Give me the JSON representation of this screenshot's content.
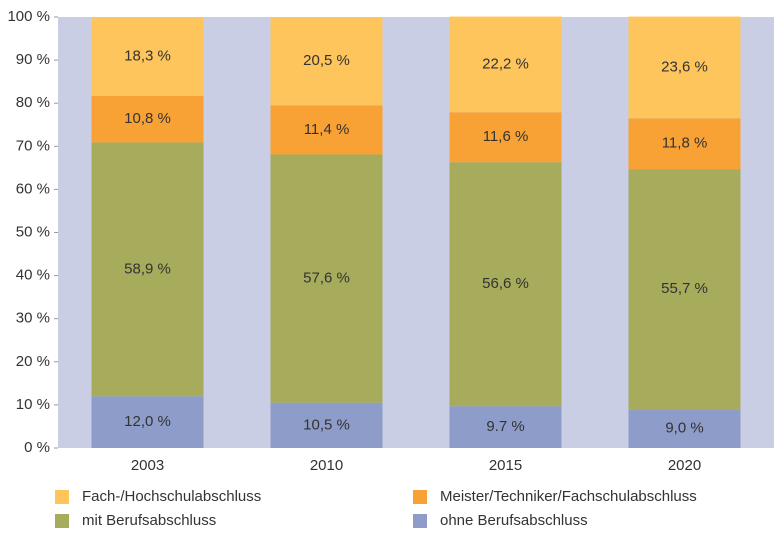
{
  "chart_data": {
    "type": "stacked_bar",
    "categories": [
      "2003",
      "2010",
      "2015",
      "2020"
    ],
    "series": [
      {
        "name": "ohne Berufsabschluss",
        "color": "#8e9cc9",
        "values": [
          12.0,
          10.5,
          9.7,
          9.0
        ],
        "value_labels": [
          "12,0 %",
          "10,5 %",
          "9.7 %",
          "9,0 %"
        ]
      },
      {
        "name": "mit Berufsabschluss",
        "color": "#a7ab5c",
        "values": [
          58.9,
          57.6,
          56.6,
          55.7
        ],
        "value_labels": [
          "58,9 %",
          "57,6 %",
          "56,6 %",
          "55,7 %"
        ]
      },
      {
        "name": "Meister/Techniker/Fachschulabschluss",
        "color": "#f8a134",
        "values": [
          10.8,
          11.4,
          11.6,
          11.8
        ],
        "value_labels": [
          "10,8 %",
          "11,4 %",
          "11,6 %",
          "11,8 %"
        ]
      },
      {
        "name": "Fach-/Hochschulabschluss",
        "color": "#fdc55c",
        "values": [
          18.3,
          20.5,
          22.2,
          23.6
        ],
        "value_labels": [
          "18,3 %",
          "20,5 %",
          "22,2 %",
          "23,6 %"
        ]
      }
    ],
    "ylim": [
      0,
      100
    ],
    "yticks": [
      {
        "value": 0,
        "label": "0 %"
      },
      {
        "value": 10,
        "label": "10 %"
      },
      {
        "value": 20,
        "label": "20 %"
      },
      {
        "value": 30,
        "label": "30 %"
      },
      {
        "value": 40,
        "label": "40 %"
      },
      {
        "value": 50,
        "label": "50 %"
      },
      {
        "value": 60,
        "label": "60 %"
      },
      {
        "value": 70,
        "label": "70 %"
      },
      {
        "value": 80,
        "label": "80 %"
      },
      {
        "value": 90,
        "label": "90 %"
      },
      {
        "value": 100,
        "label": "100 %"
      }
    ],
    "plot_background": "#c9cee4"
  }
}
